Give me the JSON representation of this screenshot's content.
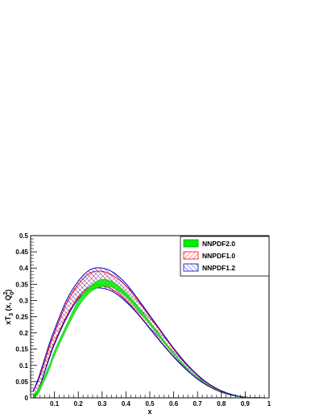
{
  "chart_data": {
    "type": "area",
    "xlabel": "x",
    "ylabel_main": "xT",
    "ylabel_sub": "3",
    "ylabel_args": "(x, Q",
    "ylabel_sup": "2",
    "ylabel_sub2": "0",
    "ylabel_close": ")",
    "xlim": [
      0,
      1
    ],
    "ylim": [
      0,
      0.5
    ],
    "x_ticks": [
      0.1,
      0.2,
      0.3,
      0.4,
      0.5,
      0.6,
      0.7,
      0.8,
      0.9,
      1
    ],
    "x_tick_labels": [
      "0.1",
      "0.2",
      "0.3",
      "0.4",
      "0.5",
      "0.6",
      "0.7",
      "0.8",
      "0.9",
      "1"
    ],
    "y_ticks": [
      0,
      0.05,
      0.1,
      0.15,
      0.2,
      0.25,
      0.3,
      0.35,
      0.4,
      0.45,
      0.5
    ],
    "y_tick_labels": [
      "0",
      "0.05",
      "0.1",
      "0.15",
      "0.2",
      "0.25",
      "0.3",
      "0.35",
      "0.4",
      "0.45",
      "0.5"
    ],
    "legend_position": "top-right",
    "x": [
      0.01,
      0.03,
      0.05,
      0.08,
      0.1,
      0.15,
      0.2,
      0.25,
      0.3,
      0.35,
      0.4,
      0.45,
      0.5,
      0.55,
      0.6,
      0.65,
      0.7,
      0.75,
      0.8,
      0.85,
      0.9,
      0.95,
      1.0
    ],
    "series": [
      {
        "name": "NNPDF1.0",
        "style": "red-hatch",
        "color": "#ff0000",
        "lower": [
          0.0,
          0.02,
          0.06,
          0.13,
          0.17,
          0.25,
          0.31,
          0.343,
          0.345,
          0.331,
          0.3,
          0.26,
          0.215,
          0.17,
          0.127,
          0.089,
          0.058,
          0.034,
          0.017,
          0.007,
          0.002,
          0.0005,
          0.0
        ],
        "upper": [
          0.02,
          0.05,
          0.09,
          0.16,
          0.2,
          0.29,
          0.35,
          0.385,
          0.39,
          0.375,
          0.345,
          0.3,
          0.25,
          0.2,
          0.15,
          0.105,
          0.069,
          0.041,
          0.021,
          0.008,
          0.002,
          0.0005,
          0.0
        ]
      },
      {
        "name": "NNPDF1.2",
        "style": "blue-hatch",
        "color": "#0000cc",
        "lower": [
          0.0,
          0.02,
          0.06,
          0.125,
          0.165,
          0.245,
          0.305,
          0.335,
          0.338,
          0.325,
          0.296,
          0.258,
          0.213,
          0.168,
          0.126,
          0.089,
          0.058,
          0.035,
          0.018,
          0.007,
          0.002,
          0.0005,
          0.0
        ],
        "upper": [
          0.02,
          0.055,
          0.1,
          0.17,
          0.21,
          0.3,
          0.36,
          0.395,
          0.4,
          0.385,
          0.352,
          0.305,
          0.254,
          0.203,
          0.153,
          0.108,
          0.071,
          0.042,
          0.022,
          0.009,
          0.002,
          0.0005,
          0.0
        ]
      },
      {
        "name": "NNPDF2.0",
        "style": "green-fill",
        "color": "#00ee00",
        "lower": [
          0.0,
          0.01,
          0.04,
          0.09,
          0.13,
          0.21,
          0.28,
          0.325,
          0.343,
          0.338,
          0.31,
          0.27,
          0.225,
          0.178,
          0.133,
          0.094,
          0.061,
          0.036,
          0.018,
          0.007,
          0.002,
          0.0005,
          0.0
        ],
        "upper": [
          0.01,
          0.025,
          0.055,
          0.105,
          0.145,
          0.225,
          0.3,
          0.345,
          0.365,
          0.355,
          0.325,
          0.283,
          0.235,
          0.186,
          0.139,
          0.098,
          0.064,
          0.038,
          0.019,
          0.007,
          0.002,
          0.0005,
          0.0
        ]
      }
    ],
    "legend_order": [
      "NNPDF2.0",
      "NNPDF1.0",
      "NNPDF1.2"
    ]
  }
}
